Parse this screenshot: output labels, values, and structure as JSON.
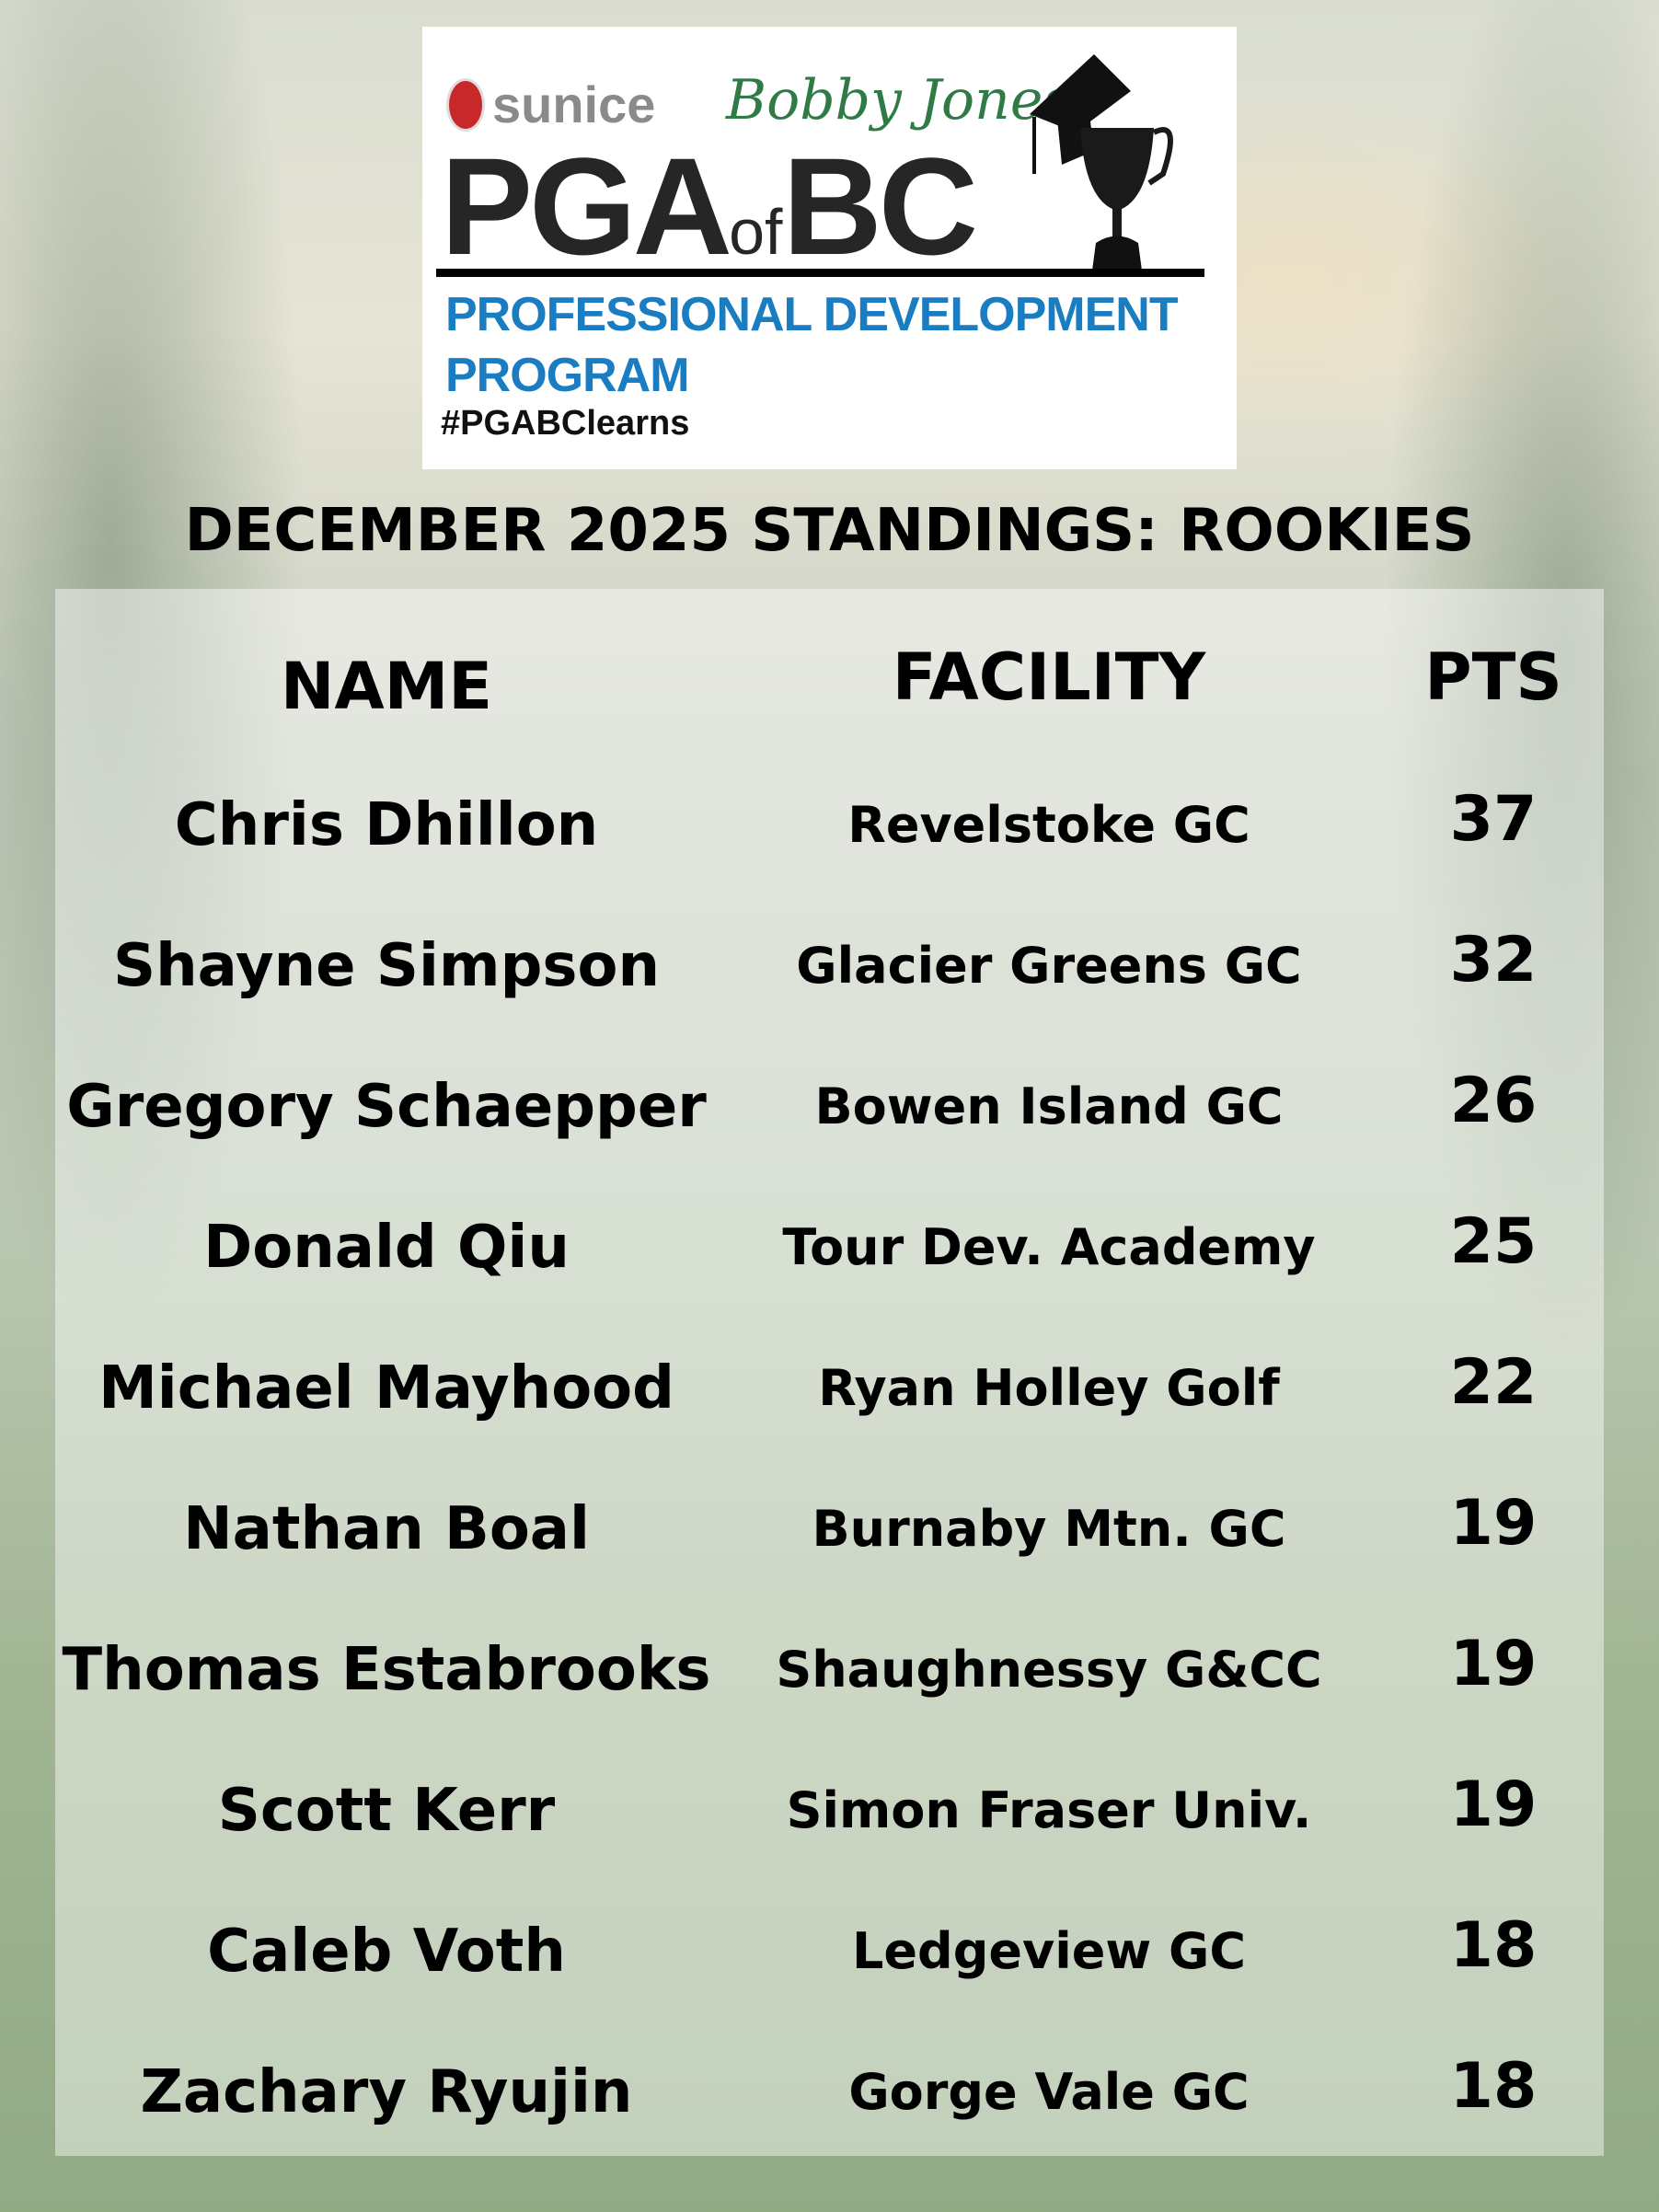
{
  "logo": {
    "sponsor1": "sunice",
    "sponsor2": "Bobby Jones",
    "org_main": "PGA",
    "org_of": "of",
    "org_bc": "BC",
    "program_line1": "PROFESSIONAL DEVELOPMENT",
    "program_line2": "PROGRAM",
    "hashtag": "#PGABClearns"
  },
  "title": "DECEMBER 2025 STANDINGS: ROOKIES",
  "headers": {
    "name": "NAME",
    "facility": "FACILITY",
    "pts": "PTS"
  },
  "rows": [
    {
      "name": "Chris Dhillon",
      "facility": "Revelstoke GC",
      "pts": "37"
    },
    {
      "name": "Shayne Simpson",
      "facility": "Glacier Greens GC",
      "pts": "32"
    },
    {
      "name": "Gregory Schaepper",
      "facility": "Bowen Island GC",
      "pts": "26"
    },
    {
      "name": "Donald Qiu",
      "facility": "Tour Dev. Academy",
      "pts": "25"
    },
    {
      "name": "Michael Mayhood",
      "facility": "Ryan Holley Golf",
      "pts": "22"
    },
    {
      "name": "Nathan Boal",
      "facility": "Burnaby Mtn. GC",
      "pts": "19"
    },
    {
      "name": "Thomas Estabrooks",
      "facility": "Shaughnessy G&CC",
      "pts": "19"
    },
    {
      "name": "Scott Kerr",
      "facility": "Simon Fraser Univ.",
      "pts": "19"
    },
    {
      "name": "Caleb Voth",
      "facility": "Ledgeview GC",
      "pts": "18"
    },
    {
      "name": "Zachary Ryujin",
      "facility": "Gorge Vale GC",
      "pts": "18"
    }
  ],
  "colors": {
    "program_blue": "#1a7dc1",
    "sunice_red": "#c8282a",
    "bobby_green": "#2f7a45"
  }
}
